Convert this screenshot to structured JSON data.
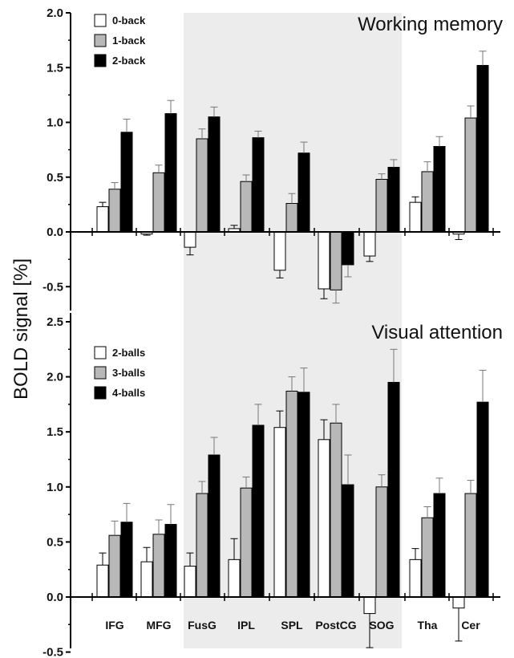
{
  "y_axis_label": "BOLD signal [%]",
  "colors": {
    "white": "#ffffff",
    "gray": "#b8b8b8",
    "black": "#000000",
    "shade": "#ececec"
  },
  "chart_data": [
    {
      "type": "bar",
      "title": "Working memory",
      "ylim": [
        -0.75,
        2.0
      ],
      "yticks": [
        "2.0",
        "1.5",
        "1.0",
        "0.5",
        "0.0",
        "-0.5"
      ],
      "categories": [
        "IFG",
        "MFG",
        "FusG",
        "IPL",
        "SPL",
        "PostCG",
        "SOG",
        "Tha",
        "Cer"
      ],
      "shaded_categories": [
        "FusG",
        "IPL",
        "SPL",
        "PostCG",
        "SOG"
      ],
      "legend_position": "top-left",
      "series": [
        {
          "name": "0-back",
          "values": [
            0.23,
            -0.02,
            -0.14,
            0.03,
            -0.35,
            -0.52,
            -0.22,
            0.27,
            -0.02
          ],
          "errors": [
            0.04,
            0.01,
            0.07,
            0.03,
            0.07,
            0.09,
            0.05,
            0.05,
            0.05
          ]
        },
        {
          "name": "1-back",
          "values": [
            0.39,
            0.54,
            0.85,
            0.46,
            0.26,
            -0.53,
            0.48,
            0.55,
            1.04
          ],
          "errors": [
            0.06,
            0.07,
            0.09,
            0.06,
            0.09,
            0.12,
            0.05,
            0.09,
            0.11
          ]
        },
        {
          "name": "2-back",
          "values": [
            0.91,
            1.08,
            1.05,
            0.86,
            0.72,
            -0.3,
            0.59,
            0.78,
            1.52
          ],
          "errors": [
            0.12,
            0.12,
            0.09,
            0.06,
            0.1,
            0.11,
            0.07,
            0.09,
            0.13
          ]
        }
      ]
    },
    {
      "type": "bar",
      "title": "Visual attention",
      "ylim": [
        -0.5,
        2.5
      ],
      "yticks": [
        "2.5",
        "2.0",
        "1.5",
        "1.0",
        "0.5",
        "0.0",
        "-0.5"
      ],
      "categories": [
        "IFG",
        "MFG",
        "FusG",
        "IPL",
        "SPL",
        "PostCG",
        "SOG",
        "Tha",
        "Cer"
      ],
      "shaded_categories": [
        "FusG",
        "IPL",
        "SPL",
        "PostCG",
        "SOG"
      ],
      "legend_position": "top-left",
      "series": [
        {
          "name": "2-balls",
          "values": [
            0.29,
            0.32,
            0.28,
            0.34,
            1.54,
            1.43,
            -0.15,
            0.34,
            -0.1
          ],
          "errors": [
            0.11,
            0.13,
            0.12,
            0.19,
            0.15,
            0.18,
            0.31,
            0.1,
            0.3
          ]
        },
        {
          "name": "3-balls",
          "values": [
            0.56,
            0.57,
            0.94,
            0.99,
            1.87,
            1.58,
            1.0,
            0.72,
            0.94
          ],
          "errors": [
            0.13,
            0.13,
            0.11,
            0.1,
            0.13,
            0.17,
            0.11,
            0.1,
            0.12
          ]
        },
        {
          "name": "4-balls",
          "values": [
            0.68,
            0.66,
            1.29,
            1.56,
            1.86,
            1.02,
            1.95,
            0.94,
            1.77
          ],
          "errors": [
            0.17,
            0.18,
            0.16,
            0.19,
            0.22,
            0.27,
            0.3,
            0.14,
            0.29
          ]
        }
      ]
    }
  ]
}
